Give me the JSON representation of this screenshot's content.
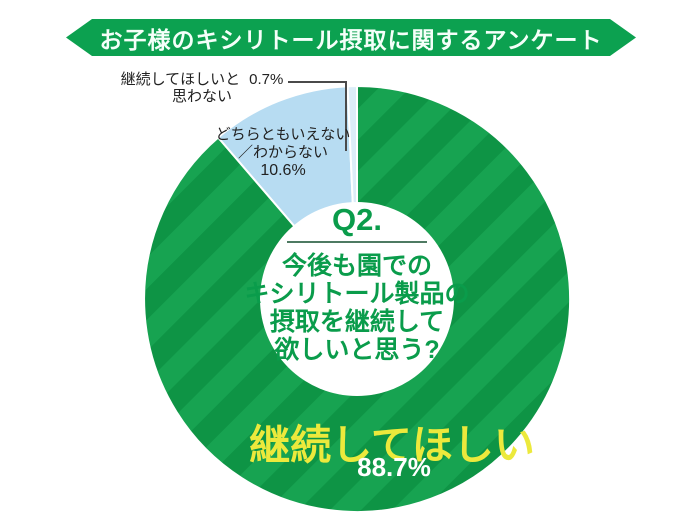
{
  "header": {
    "title": "お子様のキシリトール摂取に関するアンケート"
  },
  "colors": {
    "banner_green": "#0ca150",
    "pie_green_light": "#17a351",
    "pie_green_dark": "#0e9445",
    "pie_blue": "#b7dcf2",
    "pie_pale_blue": "#dcedf8",
    "text_green": "#0a9c4b",
    "highlight_yellow": "#ece93c",
    "label_text": "#222222"
  },
  "center": {
    "question_number": "Q2.",
    "question_lines": [
      "今後も園での",
      "キシリトール製品の",
      "摂取を継続して",
      "欲しいと思う?"
    ]
  },
  "labels": {
    "not_continue": {
      "line1": "継続してほしいと",
      "line2": "思わない",
      "value": "0.7%"
    },
    "neither": {
      "line1": "どちらともいえない",
      "line2": "／わからない",
      "value": "10.6%"
    },
    "continue": {
      "text": "継続してほしい",
      "value": "88.7%"
    }
  },
  "chart_data": {
    "type": "pie",
    "title": "お子様のキシリトール摂取に関するアンケート",
    "question": "Q2. 今後も園でのキシリトール製品の摂取を継続して欲しいと思う?",
    "start_angle_deg": 0,
    "direction": "clockwise",
    "donut": true,
    "slices": [
      {
        "id": "continue",
        "label": "継続してほしい",
        "value": 88.7,
        "display": "88.7%",
        "fill": "striped-green"
      },
      {
        "id": "neither",
        "label": "どちらともいえない／わからない",
        "value": 10.6,
        "display": "10.6%",
        "fill": "#b7dcf2"
      },
      {
        "id": "not-continue",
        "label": "継続してほしいと思わない",
        "value": 0.7,
        "display": "0.7%",
        "fill": "#dcedf8"
      }
    ]
  }
}
